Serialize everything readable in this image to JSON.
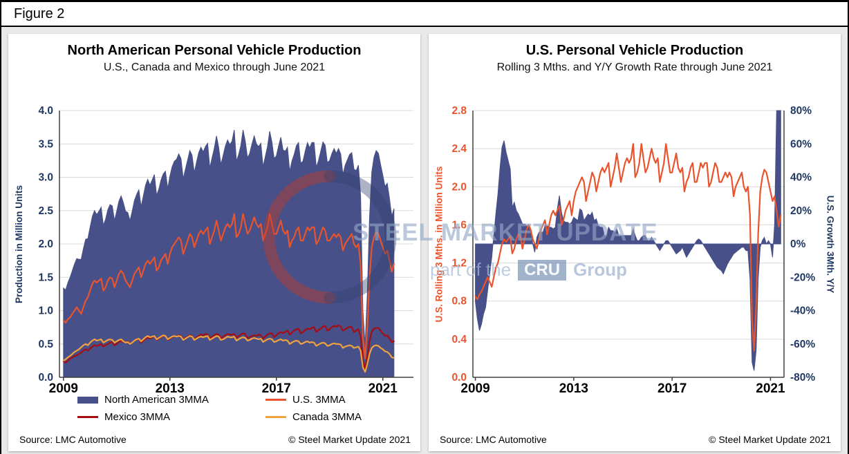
{
  "page": {
    "figure_label": "Figure 2"
  },
  "colors": {
    "navy_area": "#475088",
    "us_orange": "#e8542e",
    "mexico_red": "#a50d12",
    "canada_orange": "#f0a23e",
    "axis_text_navy": "#1f3864",
    "gridline": "#d9d9d9",
    "axis_line": "#404040"
  },
  "watermark": {
    "title": "STEEL MARKET UPDATE",
    "prefix": "part of the",
    "box": "CRU",
    "suffix": "Group"
  },
  "left_panel": {
    "title": "North American Personal Vehicle Production",
    "subtitle": "U.S., Canada and Mexico through June 2021",
    "y_axis_title": "Production in Million Units",
    "legend": [
      {
        "label": "North American 3MMA",
        "color": "#475088",
        "kind": "area"
      },
      {
        "label": "U.S. 3MMA",
        "color": "#e8542e",
        "kind": "line"
      },
      {
        "label": "Mexico 3MMA",
        "color": "#a50d12",
        "kind": "line"
      },
      {
        "label": "Canada 3MMA",
        "color": "#f0a23e",
        "kind": "line"
      }
    ],
    "source": "Source: LMC Automotive",
    "copyright": "© Steel Market Update 2021"
  },
  "right_panel": {
    "title": "U.S. Personal Vehicle Production",
    "subtitle": "Rolling 3 Mths. and Y/Y Growth Rate through June 2021",
    "left_axis_title": "U.S. Rolling 3 Mths. in Million Units",
    "right_axis_title": "U.S. Growth 3Mth. Y/Y",
    "source": "Source: LMC Automotive",
    "copyright": "© Steel Market Update 2021"
  },
  "chart_data": [
    {
      "type": "area",
      "title": "North American Personal Vehicle Production",
      "subtitle": "U.S., Canada and Mexico through June 2021",
      "ylabel": "Production in Million Units",
      "ylim": [
        0,
        4.0
      ],
      "y_tick_step": 0.5,
      "x_start": 2009,
      "x_step_months": 1,
      "x_ticks": [
        2009,
        2013,
        2017,
        2021
      ],
      "grid": true,
      "legend_position": "bottom",
      "series": [
        {
          "name": "North American 3MMA",
          "kind": "area",
          "color": "#475088",
          "values": [
            1.34,
            1.31,
            1.42,
            1.5,
            1.6,
            1.7,
            1.78,
            1.77,
            1.77,
            1.93,
            2.07,
            2.08,
            2.25,
            2.41,
            2.5,
            2.44,
            2.49,
            2.55,
            2.28,
            2.37,
            2.51,
            2.59,
            2.57,
            2.35,
            2.49,
            2.64,
            2.72,
            2.62,
            2.49,
            2.47,
            2.35,
            2.49,
            2.65,
            2.74,
            2.81,
            2.56,
            2.72,
            2.88,
            2.97,
            2.88,
            2.96,
            3.04,
            2.73,
            2.82,
            2.96,
            3.05,
            3.09,
            2.83,
            3.02,
            3.16,
            3.24,
            3.27,
            3.35,
            3.28,
            2.98,
            3.12,
            3.26,
            3.4,
            3.33,
            3.07,
            3.23,
            3.37,
            3.45,
            3.38,
            3.46,
            3.51,
            3.14,
            3.29,
            3.43,
            3.62,
            3.45,
            3.19,
            3.33,
            3.47,
            3.56,
            3.49,
            3.54,
            3.71,
            3.24,
            3.34,
            3.48,
            3.71,
            3.54,
            3.29,
            3.36,
            3.5,
            3.62,
            3.5,
            3.46,
            3.51,
            3.16,
            3.31,
            3.46,
            3.69,
            3.53,
            3.28,
            3.32,
            3.47,
            3.6,
            3.41,
            3.39,
            3.45,
            3.09,
            3.24,
            3.34,
            3.47,
            3.52,
            3.21,
            3.24,
            3.39,
            3.52,
            3.44,
            3.52,
            3.52,
            3.15,
            3.25,
            3.39,
            3.53,
            3.48,
            3.22,
            3.25,
            3.35,
            3.43,
            3.36,
            3.43,
            3.35,
            3.04,
            3.18,
            3.26,
            3.34,
            3.37,
            3.12,
            3.1,
            3.18,
            2.72,
            1.0,
            0.48,
            1.25,
            2.4,
            3.07,
            3.3,
            3.4,
            3.36,
            3.19,
            3.03,
            2.86,
            2.91,
            2.68,
            2.41,
            2.53
          ]
        },
        {
          "name": "U.S. 3MMA",
          "kind": "line",
          "color": "#e8542e",
          "values": [
            0.85,
            0.82,
            0.87,
            0.9,
            0.95,
            1.0,
            1.05,
            1.0,
            0.95,
            1.05,
            1.15,
            1.2,
            1.3,
            1.4,
            1.45,
            1.42,
            1.45,
            1.48,
            1.3,
            1.35,
            1.45,
            1.5,
            1.48,
            1.35,
            1.45,
            1.55,
            1.6,
            1.55,
            1.45,
            1.4,
            1.35,
            1.45,
            1.55,
            1.6,
            1.65,
            1.5,
            1.6,
            1.7,
            1.75,
            1.7,
            1.75,
            1.8,
            1.6,
            1.65,
            1.75,
            1.8,
            1.85,
            1.7,
            1.85,
            1.95,
            2.0,
            2.05,
            2.1,
            2.05,
            1.85,
            1.95,
            2.05,
            2.15,
            2.1,
            1.95,
            2.05,
            2.15,
            2.2,
            2.15,
            2.2,
            2.25,
            2.0,
            2.1,
            2.2,
            2.35,
            2.2,
            2.05,
            2.15,
            2.25,
            2.3,
            2.25,
            2.3,
            2.45,
            2.1,
            2.15,
            2.25,
            2.45,
            2.3,
            2.15,
            2.2,
            2.3,
            2.4,
            2.3,
            2.25,
            2.3,
            2.05,
            2.15,
            2.25,
            2.45,
            2.3,
            2.15,
            2.15,
            2.25,
            2.35,
            2.2,
            2.15,
            2.2,
            1.95,
            2.05,
            2.1,
            2.2,
            2.25,
            2.05,
            2.05,
            2.15,
            2.25,
            2.2,
            2.25,
            2.25,
            2.0,
            2.05,
            2.15,
            2.25,
            2.2,
            2.05,
            2.05,
            2.1,
            2.15,
            2.1,
            2.15,
            2.1,
            1.9,
            2.0,
            2.05,
            2.1,
            2.15,
            2.0,
            1.95,
            2.0,
            1.7,
            0.6,
            0.28,
            0.75,
            1.5,
            1.95,
            2.1,
            2.18,
            2.15,
            2.05,
            1.95,
            1.85,
            1.9,
            1.75,
            1.58,
            1.7
          ]
        },
        {
          "name": "Mexico 3MMA",
          "kind": "line",
          "color": "#a50d12",
          "values": [
            0.24,
            0.22,
            0.25,
            0.28,
            0.3,
            0.32,
            0.33,
            0.35,
            0.37,
            0.4,
            0.42,
            0.4,
            0.43,
            0.46,
            0.48,
            0.47,
            0.48,
            0.5,
            0.46,
            0.48,
            0.5,
            0.52,
            0.53,
            0.48,
            0.5,
            0.53,
            0.55,
            0.53,
            0.52,
            0.54,
            0.5,
            0.52,
            0.55,
            0.57,
            0.58,
            0.52,
            0.55,
            0.58,
            0.6,
            0.58,
            0.6,
            0.62,
            0.56,
            0.58,
            0.6,
            0.62,
            0.62,
            0.56,
            0.58,
            0.6,
            0.62,
            0.61,
            0.63,
            0.62,
            0.57,
            0.59,
            0.61,
            0.63,
            0.62,
            0.56,
            0.6,
            0.62,
            0.64,
            0.63,
            0.65,
            0.64,
            0.58,
            0.61,
            0.63,
            0.65,
            0.64,
            0.58,
            0.61,
            0.63,
            0.65,
            0.64,
            0.64,
            0.65,
            0.59,
            0.62,
            0.64,
            0.66,
            0.65,
            0.59,
            0.6,
            0.62,
            0.63,
            0.62,
            0.64,
            0.63,
            0.58,
            0.61,
            0.64,
            0.66,
            0.66,
            0.6,
            0.63,
            0.66,
            0.68,
            0.66,
            0.68,
            0.7,
            0.64,
            0.67,
            0.7,
            0.72,
            0.73,
            0.66,
            0.68,
            0.71,
            0.73,
            0.72,
            0.74,
            0.75,
            0.68,
            0.71,
            0.73,
            0.76,
            0.77,
            0.7,
            0.72,
            0.75,
            0.77,
            0.76,
            0.78,
            0.76,
            0.7,
            0.72,
            0.74,
            0.76,
            0.75,
            0.68,
            0.7,
            0.72,
            0.62,
            0.25,
            0.12,
            0.3,
            0.55,
            0.68,
            0.73,
            0.74,
            0.74,
            0.7,
            0.66,
            0.62,
            0.63,
            0.58,
            0.53,
            0.54
          ]
        },
        {
          "name": "Canada 3MMA",
          "kind": "line",
          "color": "#f0a23e",
          "values": [
            0.25,
            0.27,
            0.3,
            0.32,
            0.35,
            0.38,
            0.4,
            0.42,
            0.45,
            0.48,
            0.5,
            0.48,
            0.52,
            0.55,
            0.57,
            0.55,
            0.56,
            0.57,
            0.52,
            0.54,
            0.56,
            0.57,
            0.56,
            0.52,
            0.54,
            0.56,
            0.57,
            0.54,
            0.52,
            0.53,
            0.5,
            0.52,
            0.55,
            0.57,
            0.58,
            0.54,
            0.57,
            0.6,
            0.62,
            0.6,
            0.61,
            0.62,
            0.57,
            0.59,
            0.61,
            0.63,
            0.62,
            0.57,
            0.59,
            0.61,
            0.62,
            0.61,
            0.62,
            0.61,
            0.56,
            0.58,
            0.6,
            0.62,
            0.61,
            0.56,
            0.58,
            0.6,
            0.61,
            0.6,
            0.61,
            0.62,
            0.56,
            0.58,
            0.6,
            0.62,
            0.61,
            0.56,
            0.57,
            0.59,
            0.61,
            0.6,
            0.6,
            0.61,
            0.55,
            0.57,
            0.59,
            0.6,
            0.59,
            0.55,
            0.56,
            0.58,
            0.59,
            0.58,
            0.57,
            0.58,
            0.53,
            0.55,
            0.57,
            0.58,
            0.57,
            0.53,
            0.54,
            0.56,
            0.57,
            0.55,
            0.56,
            0.55,
            0.5,
            0.52,
            0.54,
            0.55,
            0.54,
            0.5,
            0.51,
            0.53,
            0.54,
            0.52,
            0.53,
            0.52,
            0.47,
            0.49,
            0.51,
            0.52,
            0.51,
            0.47,
            0.48,
            0.5,
            0.51,
            0.5,
            0.5,
            0.49,
            0.44,
            0.46,
            0.47,
            0.48,
            0.47,
            0.44,
            0.45,
            0.46,
            0.4,
            0.15,
            0.08,
            0.2,
            0.35,
            0.44,
            0.47,
            0.48,
            0.47,
            0.44,
            0.42,
            0.39,
            0.38,
            0.35,
            0.3,
            0.29
          ]
        }
      ]
    },
    {
      "type": "area",
      "title": "U.S. Personal Vehicle Production",
      "subtitle": "Rolling 3 Mths. and Y/Y Growth Rate through June 2021",
      "left_ylabel": "U.S. Rolling 3 Mths. in Million Units",
      "right_ylabel": "U.S. Growth 3Mth. Y/Y",
      "left_ylim": [
        0,
        2.8
      ],
      "left_step": 0.4,
      "right_ylim": [
        -80,
        80
      ],
      "right_step": 20,
      "x_start": 2009,
      "x_step_months": 1,
      "x_ticks": [
        2009,
        2013,
        2017,
        2021
      ],
      "grid": true,
      "legend_position": "none",
      "series": [
        {
          "name": "U.S. Growth 3Mth. Y/Y (%)",
          "kind": "area",
          "axis": "right",
          "color": "#475088",
          "values": [
            -35,
            -45,
            -52,
            -48,
            -42,
            -38,
            -28,
            -18,
            -8,
            5,
            18,
            30,
            45,
            58,
            62,
            55,
            50,
            45,
            22,
            25,
            20,
            18,
            15,
            12,
            12,
            11,
            10,
            9,
            0,
            -5,
            4,
            7,
            7,
            7,
            11,
            11,
            10,
            10,
            9,
            10,
            21,
            29,
            19,
            14,
            13,
            13,
            12,
            13,
            16,
            15,
            14,
            21,
            20,
            14,
            16,
            18,
            17,
            19,
            14,
            15,
            11,
            10,
            10,
            5,
            5,
            10,
            8,
            8,
            7,
            9,
            5,
            5,
            5,
            5,
            5,
            5,
            5,
            9,
            5,
            2,
            2,
            4,
            5,
            5,
            2,
            2,
            4,
            2,
            0,
            -2,
            -4,
            -2,
            0,
            2,
            2,
            0,
            -2,
            -4,
            -6,
            -5,
            -4,
            -2,
            -5,
            -8,
            -6,
            -4,
            -2,
            0,
            2,
            3,
            2,
            0,
            -2,
            -4,
            -6,
            -8,
            -10,
            -12,
            -14,
            -15,
            -16,
            -18,
            -15,
            -12,
            -10,
            -8,
            -6,
            -5,
            -4,
            -3,
            -2,
            -2,
            -4,
            -4,
            -21,
            -71,
            -76,
            -64,
            -21,
            -2,
            2,
            4,
            0,
            2,
            0,
            -8,
            12,
            80,
            80,
            80
          ]
        },
        {
          "name": "U.S. Rolling 3 Mths.",
          "kind": "line",
          "axis": "left",
          "color": "#e8542e",
          "values": [
            0.85,
            0.82,
            0.87,
            0.9,
            0.95,
            1.0,
            1.05,
            1.0,
            0.95,
            1.05,
            1.15,
            1.2,
            1.3,
            1.4,
            1.45,
            1.42,
            1.45,
            1.48,
            1.3,
            1.35,
            1.45,
            1.5,
            1.48,
            1.35,
            1.45,
            1.55,
            1.6,
            1.55,
            1.45,
            1.4,
            1.35,
            1.45,
            1.55,
            1.6,
            1.65,
            1.5,
            1.6,
            1.7,
            1.75,
            1.7,
            1.75,
            1.8,
            1.6,
            1.65,
            1.75,
            1.8,
            1.85,
            1.7,
            1.85,
            1.95,
            2.0,
            2.05,
            2.1,
            2.05,
            1.85,
            1.95,
            2.05,
            2.15,
            2.1,
            1.95,
            2.05,
            2.15,
            2.2,
            2.15,
            2.2,
            2.25,
            2.0,
            2.1,
            2.2,
            2.35,
            2.2,
            2.05,
            2.15,
            2.25,
            2.3,
            2.25,
            2.3,
            2.45,
            2.1,
            2.15,
            2.25,
            2.45,
            2.3,
            2.15,
            2.2,
            2.3,
            2.4,
            2.3,
            2.25,
            2.3,
            2.05,
            2.15,
            2.25,
            2.45,
            2.3,
            2.15,
            2.15,
            2.25,
            2.35,
            2.2,
            2.15,
            2.2,
            1.95,
            2.05,
            2.1,
            2.2,
            2.25,
            2.05,
            2.05,
            2.15,
            2.25,
            2.2,
            2.25,
            2.25,
            2.0,
            2.05,
            2.15,
            2.25,
            2.2,
            2.05,
            2.05,
            2.1,
            2.15,
            2.1,
            2.15,
            2.1,
            1.9,
            2.0,
            2.05,
            2.1,
            2.15,
            2.0,
            1.95,
            2.0,
            1.7,
            0.6,
            0.28,
            0.75,
            1.5,
            1.95,
            2.1,
            2.18,
            2.15,
            2.05,
            1.95,
            1.85,
            1.9,
            1.75,
            1.58,
            1.7
          ]
        }
      ]
    }
  ]
}
